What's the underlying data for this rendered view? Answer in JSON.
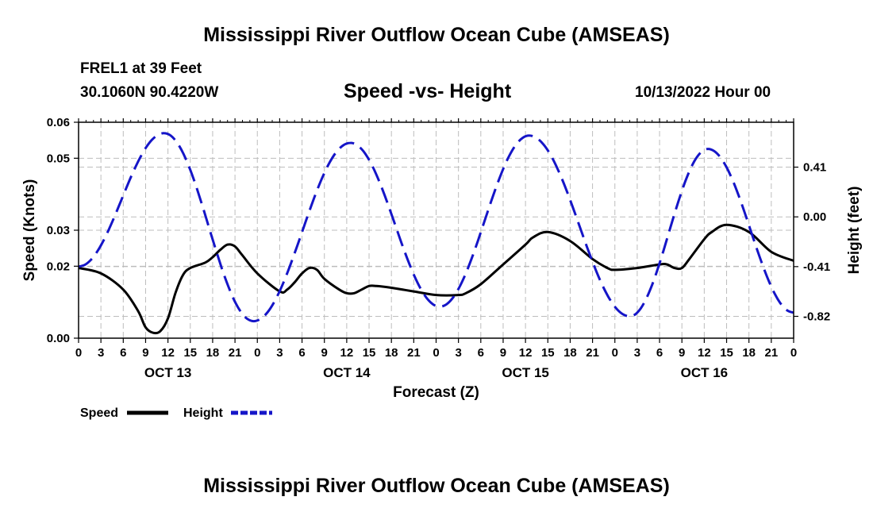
{
  "page": {
    "main_title": "Mississippi River Outflow Ocean Cube (AMSEAS)",
    "bottom_title": "Mississippi River Outflow Ocean Cube (AMSEAS)",
    "station": "FREL1 at 39 Feet",
    "coordinates": "30.1060N  90.4220W",
    "chart_title": "Speed -vs- Height",
    "date": "10/13/2022 Hour 00"
  },
  "colors": {
    "speed": "#000000",
    "height": "#1515c8",
    "grid": "#bdbdbd"
  },
  "chart_data": {
    "type": "line",
    "title": "Speed -vs- Height",
    "xlabel": "Forecast (Z)",
    "ylabel": "Speed (Knots)",
    "y2label": "Height (feet)",
    "xlim": [
      0,
      96
    ],
    "ylim": [
      0,
      0.06
    ],
    "y2lim": [
      -1.0,
      0.78
    ],
    "grid": true,
    "legend_position": "bottom-left",
    "x_tick_labels": [
      "0",
      "3",
      "6",
      "9",
      "12",
      "15",
      "18",
      "21",
      "0",
      "3",
      "6",
      "9",
      "12",
      "15",
      "18",
      "21",
      "0",
      "3",
      "6",
      "9",
      "12",
      "15",
      "18",
      "21",
      "0",
      "3",
      "6",
      "9",
      "12",
      "15",
      "18",
      "21",
      "0"
    ],
    "day_labels": [
      {
        "label": "OCT 13",
        "hour": 12
      },
      {
        "label": "OCT 14",
        "hour": 36
      },
      {
        "label": "OCT 15",
        "hour": 60
      },
      {
        "label": "OCT 16",
        "hour": 84
      }
    ],
    "y_ticks": [
      0.0,
      0.02,
      0.03,
      0.05,
      0.06
    ],
    "y_tick_labels": [
      "0.00",
      "0.02",
      "0.03",
      "0.05",
      "0.06"
    ],
    "y2_ticks": [
      0.41,
      0.0,
      -0.41,
      -0.82
    ],
    "y2_tick_labels": [
      "0.41",
      "0.00",
      "-0.41",
      "-0.82"
    ],
    "series": [
      {
        "name": "Speed",
        "axis": "left",
        "style": "solid",
        "x": [
          0,
          3,
          6,
          8,
          9,
          10,
          11,
          12,
          13,
          14,
          15,
          17,
          18,
          19,
          20,
          21,
          22,
          24,
          27,
          28,
          29,
          30,
          31,
          32,
          33,
          35,
          36,
          37,
          38,
          39,
          40,
          42,
          45,
          48,
          51,
          52,
          54,
          57,
          60,
          61,
          63,
          66,
          69,
          71,
          72,
          75,
          78,
          79,
          80,
          81,
          82,
          84,
          85,
          87,
          90,
          93,
          96
        ],
        "values": [
          0.0195,
          0.018,
          0.0135,
          0.0075,
          0.003,
          0.0015,
          0.002,
          0.0055,
          0.0125,
          0.0175,
          0.0195,
          0.021,
          0.0225,
          0.0245,
          0.026,
          0.0255,
          0.023,
          0.018,
          0.013,
          0.0135,
          0.0155,
          0.018,
          0.0195,
          0.019,
          0.0165,
          0.0135,
          0.0125,
          0.0125,
          0.0135,
          0.0145,
          0.0145,
          0.014,
          0.013,
          0.012,
          0.012,
          0.0125,
          0.015,
          0.0205,
          0.026,
          0.028,
          0.0295,
          0.027,
          0.022,
          0.0195,
          0.019,
          0.0195,
          0.0205,
          0.0205,
          0.0195,
          0.0195,
          0.022,
          0.0275,
          0.0295,
          0.0315,
          0.0295,
          0.024,
          0.0215
        ]
      },
      {
        "name": "Height",
        "axis": "right",
        "style": "dashed",
        "x": [
          0,
          11.5,
          23.5,
          36.5,
          48.5,
          60.5,
          74,
          84.5,
          96
        ],
        "values": [
          -0.41,
          0.69,
          -0.86,
          0.61,
          -0.74,
          0.67,
          -0.82,
          0.56,
          -0.79
        ]
      }
    ]
  },
  "legend": {
    "items": [
      {
        "label": "Speed"
      },
      {
        "label": "Height"
      }
    ]
  }
}
